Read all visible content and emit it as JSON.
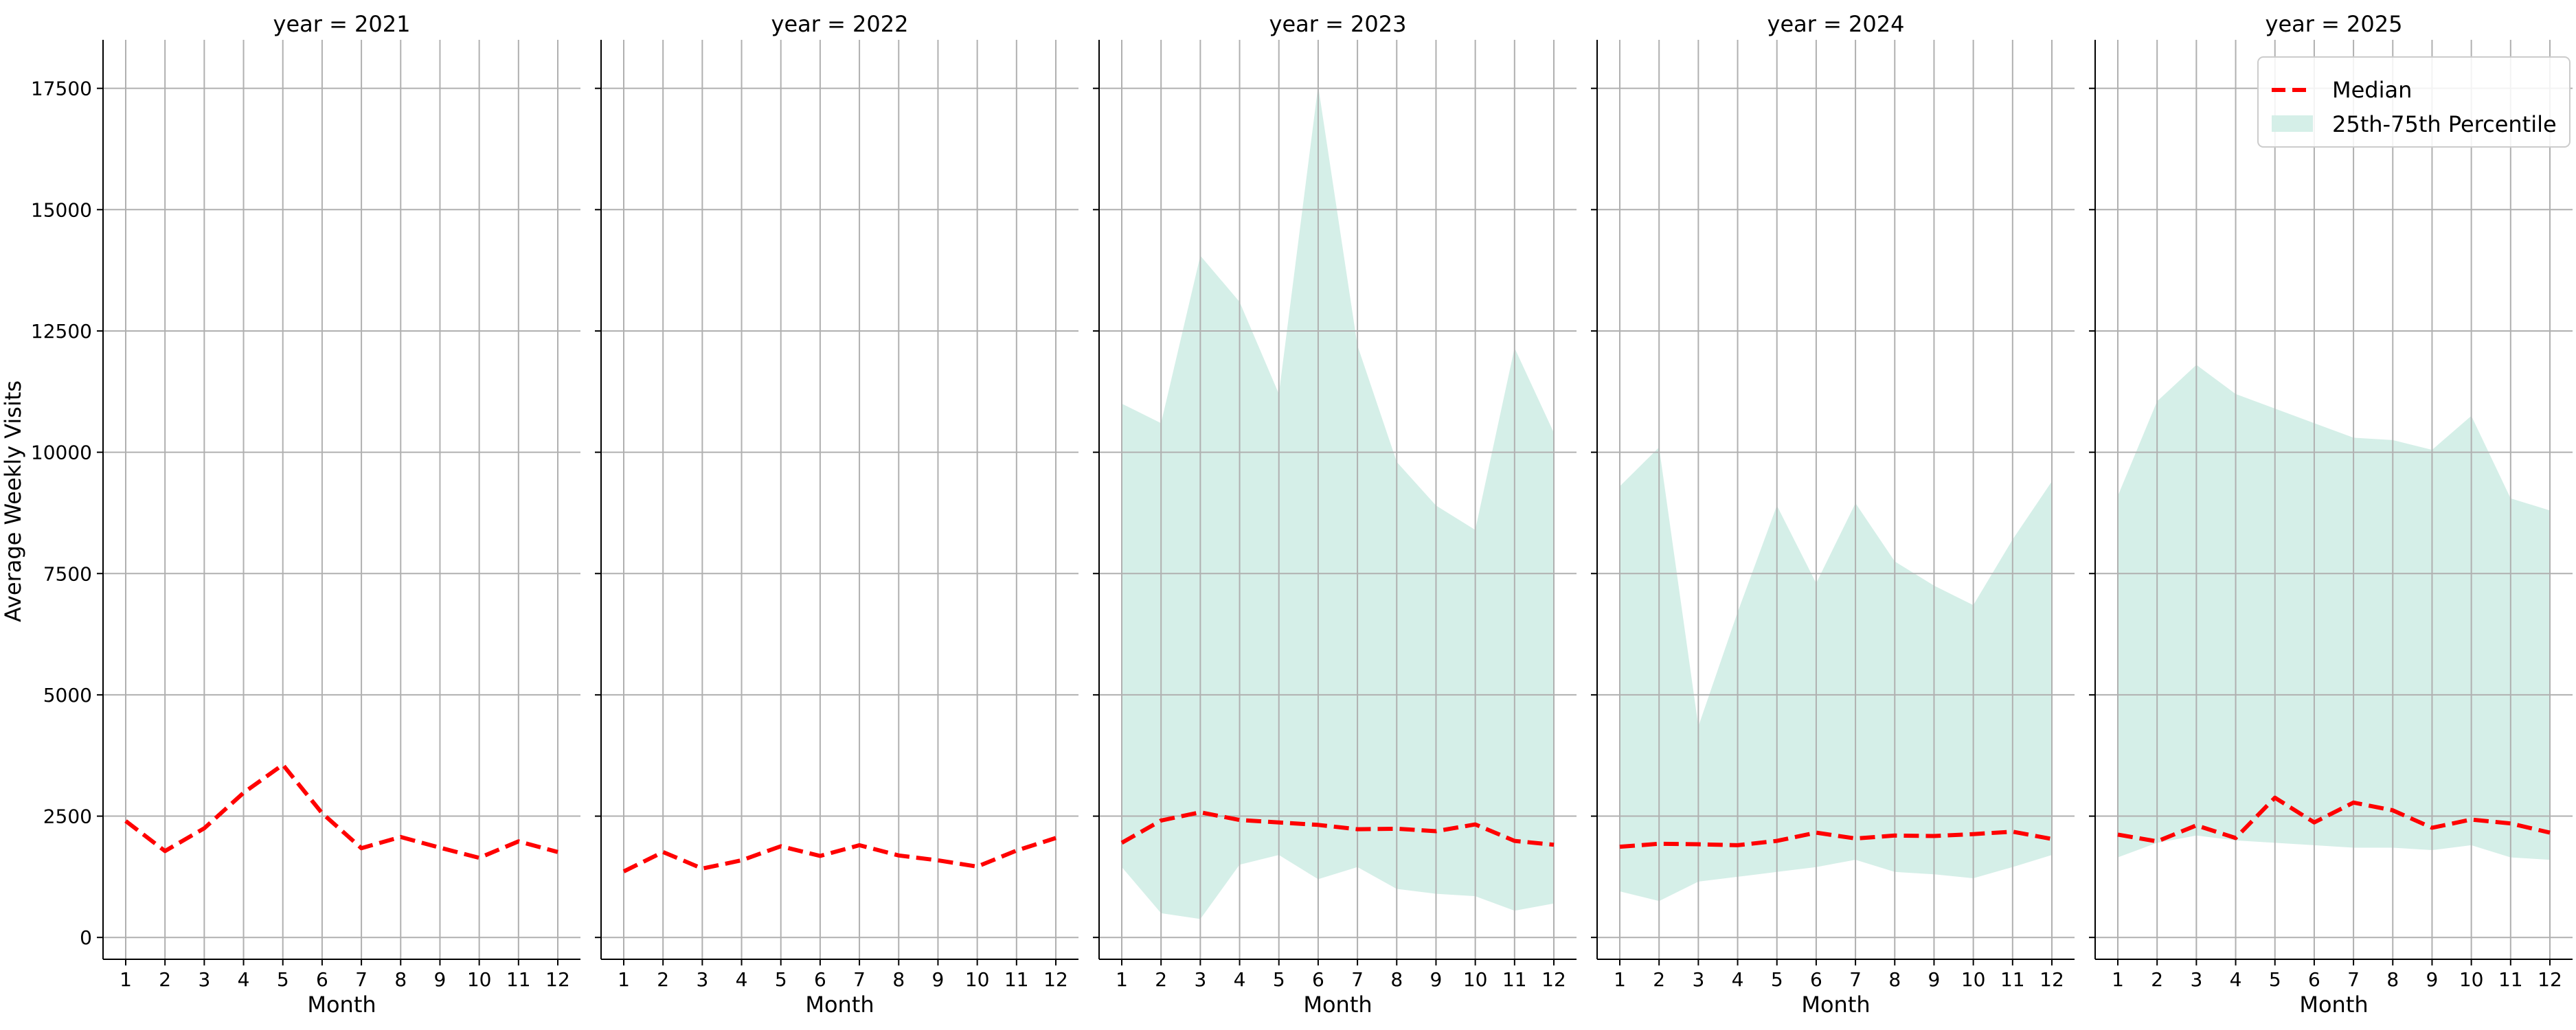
{
  "chart_data": {
    "type": "line",
    "ylabel": "Average Weekly Visits",
    "xlabel": "Month",
    "x": [
      1,
      2,
      3,
      4,
      5,
      6,
      7,
      8,
      9,
      10,
      11,
      12
    ],
    "xtick_labels": [
      "1",
      "2",
      "3",
      "4",
      "5",
      "6",
      "7",
      "8",
      "9",
      "10",
      "11",
      "12"
    ],
    "ylim": [
      -450,
      18500
    ],
    "yticks": [
      0,
      2500,
      5000,
      7500,
      10000,
      12500,
      15000,
      17500
    ],
    "ytick_labels": [
      "0",
      "2500",
      "5000",
      "7500",
      "10000",
      "12500",
      "15000",
      "17500"
    ],
    "grid": true,
    "legend": {
      "placement": "top-right",
      "entries": [
        {
          "label": "Median",
          "style": "dashed-line"
        },
        {
          "label": "25th-75th Percentile",
          "style": "band"
        }
      ]
    },
    "colors": {
      "median": "#ff0000",
      "band": "#d5efe8",
      "grid": "#b0b0b0"
    },
    "panels": [
      {
        "title": "year = 2021",
        "median": [
          2400,
          1780,
          2250,
          2980,
          3560,
          2560,
          1840,
          2070,
          1850,
          1640,
          1980,
          1760
        ],
        "p25": [],
        "p75": []
      },
      {
        "title": "year = 2022",
        "median": [
          1360,
          1760,
          1420,
          1590,
          1880,
          1680,
          1900,
          1690,
          1590,
          1460,
          1790,
          2050
        ],
        "p25": [],
        "p75": []
      },
      {
        "title": "year = 2023",
        "median": [
          1950,
          2410,
          2580,
          2420,
          2370,
          2320,
          2230,
          2240,
          2190,
          2330,
          1990,
          1910
        ],
        "p25": [
          1450,
          500,
          380,
          1500,
          1700,
          1200,
          1450,
          1000,
          900,
          850,
          550,
          700
        ],
        "p75": [
          11000,
          10600,
          14050,
          13100,
          11200,
          17550,
          12200,
          9800,
          8900,
          8400,
          12150,
          10400
        ]
      },
      {
        "title": "year = 2024",
        "median": [
          1870,
          1930,
          1920,
          1900,
          1990,
          2160,
          2040,
          2100,
          2090,
          2130,
          2180,
          2030
        ],
        "p25": [
          950,
          750,
          1150,
          1250,
          1350,
          1450,
          1600,
          1350,
          1300,
          1220,
          1450,
          1700
        ],
        "p75": [
          9300,
          10100,
          4350,
          6700,
          8900,
          7300,
          8950,
          7750,
          7250,
          6850,
          8200,
          9400
        ]
      },
      {
        "title": "year = 2025",
        "median": [
          2120,
          1980,
          2310,
          2050,
          2880,
          2370,
          2780,
          2620,
          2260,
          2430,
          2350,
          2160
        ],
        "p25": [
          1650,
          1950,
          2100,
          2000,
          1950,
          1900,
          1850,
          1850,
          1800,
          1900,
          1650,
          1600
        ],
        "p75": [
          9100,
          11050,
          11800,
          11200,
          10900,
          10600,
          10300,
          10250,
          10050,
          10750,
          9050,
          8800
        ]
      }
    ]
  }
}
